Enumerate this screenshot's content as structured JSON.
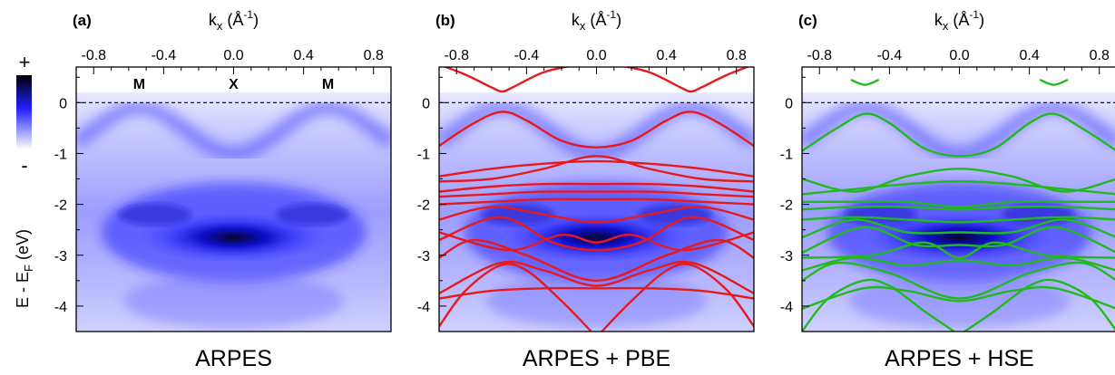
{
  "chart_data": {
    "type": "heatmap",
    "ylabel": "E - E",
    "ylabel_sub": "F",
    "ylabel_unit": " (eV)",
    "colorbar": {
      "max_label": "+",
      "min_label": "-",
      "colors": [
        "#ffffff",
        "#2020ff",
        "#000000"
      ]
    },
    "xlim": [
      -0.9,
      0.9
    ],
    "ylim": [
      -4.5,
      0.7
    ],
    "fermi_level": 0,
    "panels": [
      {
        "id": "a",
        "panel_label": "(a)",
        "xlabel": "k",
        "xlabel_sub": "x",
        "xlabel_unit": " (Å",
        "xlabel_sup": "-1",
        "xlabel_close": ")",
        "caption": "ARPES",
        "xticks": [
          "-0.8",
          "-0.4",
          "0.0",
          "0.4",
          "0.8"
        ],
        "yticks": [
          "0",
          "-1",
          "-2",
          "-3",
          "-4"
        ],
        "kpoints": [
          {
            "label": "M",
            "k": -0.54
          },
          {
            "label": "X",
            "k": 0.0
          },
          {
            "label": "M",
            "k": 0.54
          }
        ],
        "overlay": null
      },
      {
        "id": "b",
        "panel_label": "(b)",
        "xlabel": "k",
        "xlabel_sub": "x",
        "xlabel_unit": " (Å",
        "xlabel_sup": "-1",
        "xlabel_close": ")",
        "caption": "ARPES + PBE",
        "xticks": [
          "-0.8",
          "-0.4",
          "0.0",
          "0.4",
          "0.8"
        ],
        "yticks": [
          "0",
          "-1",
          "-2",
          "-3",
          "-4"
        ],
        "kpoints": [],
        "overlay": {
          "name": "PBE",
          "color": "#e8191b",
          "bands": [
            {
              "x": [
                -0.9,
                -0.75,
                -0.6,
                -0.54,
                -0.48,
                -0.3,
                -0.1,
                0.0,
                0.1,
                0.3,
                0.48,
                0.54,
                0.6,
                0.75,
                0.9
              ],
              "y": [
                0.75,
                0.55,
                0.3,
                0.22,
                0.3,
                0.6,
                0.75,
                0.78,
                0.75,
                0.6,
                0.3,
                0.22,
                0.3,
                0.55,
                0.75
              ]
            },
            {
              "x": [
                -0.9,
                -0.7,
                -0.54,
                -0.4,
                -0.2,
                0.0,
                0.2,
                0.4,
                0.54,
                0.7,
                0.9
              ],
              "y": [
                -0.85,
                -0.4,
                -0.18,
                -0.35,
                -0.75,
                -0.88,
                -0.75,
                -0.35,
                -0.18,
                -0.4,
                -0.85
              ]
            },
            {
              "x": [
                -0.9,
                -0.6,
                -0.3,
                0.0,
                0.3,
                0.6,
                0.9
              ],
              "y": [
                -1.45,
                -1.3,
                -1.2,
                -1.15,
                -1.2,
                -1.3,
                -1.45
              ]
            },
            {
              "x": [
                -0.9,
                -0.6,
                -0.3,
                0.0,
                0.3,
                0.6,
                0.9
              ],
              "y": [
                -1.55,
                -1.5,
                -1.3,
                -1.05,
                -1.3,
                -1.5,
                -1.55
              ]
            },
            {
              "x": [
                -0.9,
                -0.6,
                -0.3,
                0.0,
                0.3,
                0.6,
                0.9
              ],
              "y": [
                -1.75,
                -1.65,
                -1.6,
                -1.6,
                -1.6,
                -1.65,
                -1.75
              ]
            },
            {
              "x": [
                -0.9,
                -0.6,
                -0.3,
                0.0,
                0.3,
                0.6,
                0.9
              ],
              "y": [
                -1.85,
                -1.8,
                -1.75,
                -1.75,
                -1.75,
                -1.8,
                -1.85
              ]
            },
            {
              "x": [
                -0.9,
                -0.6,
                -0.3,
                0.0,
                0.3,
                0.6,
                0.9
              ],
              "y": [
                -2.0,
                -1.95,
                -1.9,
                -1.9,
                -1.9,
                -1.95,
                -2.0
              ]
            },
            {
              "x": [
                -0.9,
                -0.6,
                -0.3,
                0.0,
                0.3,
                0.6,
                0.9
              ],
              "y": [
                -2.3,
                -2.05,
                -2.2,
                -2.35,
                -2.2,
                -2.05,
                -2.3
              ]
            },
            {
              "x": [
                -0.9,
                -0.55,
                -0.25,
                0.0,
                0.25,
                0.55,
                0.9
              ],
              "y": [
                -2.7,
                -2.25,
                -2.75,
                -2.9,
                -2.75,
                -2.25,
                -2.7
              ]
            },
            {
              "x": [
                -0.9,
                -0.5,
                -0.2,
                0.0,
                0.2,
                0.5,
                0.9
              ],
              "y": [
                -2.55,
                -2.9,
                -2.6,
                -2.75,
                -2.6,
                -2.9,
                -2.55
              ]
            },
            {
              "x": [
                -0.9,
                -0.7,
                -0.4,
                0.0,
                0.4,
                0.7,
                0.9
              ],
              "y": [
                -3.05,
                -2.7,
                -3.0,
                -3.5,
                -3.0,
                -2.7,
                -3.05
              ]
            },
            {
              "x": [
                -0.9,
                -0.55,
                -0.3,
                0.0,
                0.3,
                0.55,
                0.9
              ],
              "y": [
                -3.75,
                -3.15,
                -3.3,
                -3.6,
                -3.3,
                -3.15,
                -3.75
              ]
            },
            {
              "x": [
                -0.9,
                -0.6,
                -0.3,
                0.0,
                0.3,
                0.6,
                0.9
              ],
              "y": [
                -3.85,
                -3.7,
                -3.65,
                -3.65,
                -3.65,
                -3.7,
                -3.85
              ]
            },
            {
              "x": [
                -0.9,
                -0.75,
                -0.55,
                -0.4,
                -0.2,
                -0.03
              ],
              "y": [
                -4.4,
                -3.7,
                -3.2,
                -3.3,
                -3.9,
                -4.5
              ]
            },
            {
              "x": [
                0.03,
                0.2,
                0.4,
                0.55,
                0.75,
                0.9
              ],
              "y": [
                -4.5,
                -3.9,
                -3.3,
                -3.2,
                -3.7,
                -4.4
              ]
            }
          ]
        }
      },
      {
        "id": "c",
        "panel_label": "(c)",
        "xlabel": "k",
        "xlabel_sub": "x",
        "xlabel_unit": " (Å",
        "xlabel_sup": "-1",
        "xlabel_close": ")",
        "caption": "ARPES + HSE",
        "xticks": [
          "-0.8",
          "-0.4",
          "0.0",
          "0.4",
          "0.8"
        ],
        "yticks": [
          "0",
          "-1",
          "-2",
          "-3",
          "-4"
        ],
        "kpoints": [],
        "overlay": {
          "name": "HSE",
          "color": "#22b81e",
          "bands": [
            {
              "x": [
                -0.62,
                -0.54,
                -0.46
              ],
              "y": [
                0.45,
                0.35,
                0.45
              ]
            },
            {
              "x": [
                0.46,
                0.54,
                0.62
              ],
              "y": [
                0.45,
                0.35,
                0.45
              ]
            },
            {
              "x": [
                -0.9,
                -0.7,
                -0.54,
                -0.4,
                -0.2,
                0.0,
                0.2,
                0.4,
                0.54,
                0.7,
                0.9
              ],
              "y": [
                -0.95,
                -0.5,
                -0.22,
                -0.4,
                -0.9,
                -1.05,
                -0.9,
                -0.4,
                -0.22,
                -0.5,
                -0.95
              ]
            },
            {
              "x": [
                -0.9,
                -0.6,
                -0.3,
                0.0,
                0.3,
                0.6,
                0.9
              ],
              "y": [
                -1.5,
                -1.75,
                -1.45,
                -1.3,
                -1.45,
                -1.75,
                -1.5
              ]
            },
            {
              "x": [
                -0.9,
                -0.6,
                -0.3,
                0.0,
                0.3,
                0.6,
                0.9
              ],
              "y": [
                -1.8,
                -1.7,
                -1.6,
                -1.55,
                -1.6,
                -1.7,
                -1.8
              ]
            },
            {
              "x": [
                -0.9,
                -0.6,
                -0.3,
                0.0,
                0.3,
                0.6,
                0.9
              ],
              "y": [
                -1.95,
                -1.95,
                -1.95,
                -2.05,
                -1.95,
                -1.95,
                -1.95
              ]
            },
            {
              "x": [
                -0.9,
                -0.6,
                -0.3,
                0.0,
                0.3,
                0.6,
                0.9
              ],
              "y": [
                -2.1,
                -2.05,
                -2.05,
                -2.1,
                -2.05,
                -2.05,
                -2.1
              ]
            },
            {
              "x": [
                -0.9,
                -0.6,
                -0.3,
                0.0,
                0.3,
                0.6,
                0.9
              ],
              "y": [
                -2.3,
                -2.25,
                -2.3,
                -2.35,
                -2.3,
                -2.25,
                -2.3
              ]
            },
            {
              "x": [
                -0.9,
                -0.6,
                -0.3,
                0.0,
                0.3,
                0.6,
                0.9
              ],
              "y": [
                -2.65,
                -2.3,
                -2.55,
                -2.55,
                -2.55,
                -2.3,
                -2.65
              ]
            },
            {
              "x": [
                -0.9,
                -0.55,
                -0.25,
                0.0,
                0.25,
                0.55,
                0.9
              ],
              "y": [
                -2.95,
                -2.45,
                -2.8,
                -2.8,
                -2.8,
                -2.45,
                -2.95
              ]
            },
            {
              "x": [
                -0.9,
                -0.5,
                -0.2,
                0.0,
                0.2,
                0.5,
                0.9
              ],
              "y": [
                -3.05,
                -3.0,
                -2.75,
                -3.05,
                -2.75,
                -3.0,
                -3.05
              ]
            },
            {
              "x": [
                -0.9,
                -0.6,
                -0.3,
                0.0,
                0.3,
                0.6,
                0.9
              ],
              "y": [
                -3.3,
                -3.05,
                -3.2,
                -3.1,
                -3.2,
                -3.05,
                -3.3
              ]
            },
            {
              "x": [
                -0.9,
                -0.7,
                -0.4,
                0.0,
                0.4,
                0.7,
                0.9
              ],
              "y": [
                -3.5,
                -3.15,
                -3.35,
                -3.85,
                -3.35,
                -3.15,
                -3.5
              ]
            },
            {
              "x": [
                -0.9,
                -0.55,
                -0.3,
                0.0,
                0.3,
                0.55,
                0.9
              ],
              "y": [
                -4.05,
                -3.65,
                -3.7,
                -3.9,
                -3.7,
                -3.65,
                -4.05
              ]
            },
            {
              "x": [
                -0.9,
                -0.75,
                -0.55,
                -0.4,
                -0.2,
                -0.03
              ],
              "y": [
                -4.5,
                -3.85,
                -3.5,
                -3.6,
                -4.1,
                -4.5
              ]
            },
            {
              "x": [
                0.03,
                0.2,
                0.4,
                0.55,
                0.75,
                0.9
              ],
              "y": [
                -4.5,
                -4.1,
                -3.6,
                -3.5,
                -3.85,
                -4.5
              ]
            }
          ]
        }
      }
    ]
  }
}
